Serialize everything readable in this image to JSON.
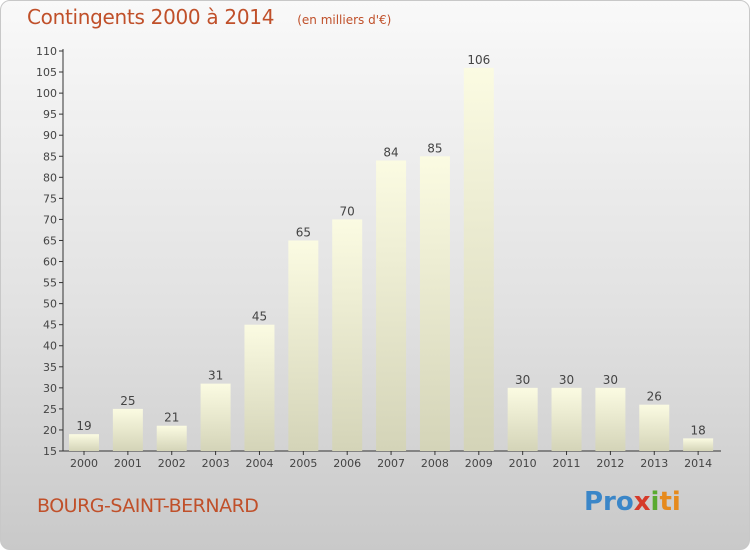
{
  "header": {
    "title": "Contingents 2000 à 2014",
    "subtitle": "(en milliers d'€)"
  },
  "footer": {
    "place": "BOURG-SAINT-BERNARD",
    "brand": [
      "Pro",
      "x",
      "i",
      "ti"
    ]
  },
  "colors": {
    "accent": "#c0502a",
    "bar_top": "#fbfbe2",
    "bar_bottom": "#d4d4b8"
  },
  "chart_data": {
    "type": "bar",
    "categories": [
      "2000",
      "2001",
      "2002",
      "2003",
      "2004",
      "2005",
      "2006",
      "2007",
      "2008",
      "2009",
      "2010",
      "2011",
      "2012",
      "2013",
      "2014"
    ],
    "values": [
      19,
      25,
      21,
      31,
      45,
      65,
      70,
      84,
      85,
      106,
      30,
      30,
      30,
      26,
      18
    ],
    "ylim": [
      15,
      110
    ],
    "yticks": [
      15,
      20,
      25,
      30,
      35,
      40,
      45,
      50,
      55,
      60,
      65,
      70,
      75,
      80,
      85,
      90,
      95,
      100,
      105,
      110
    ],
    "grid": false,
    "legend": "none"
  }
}
